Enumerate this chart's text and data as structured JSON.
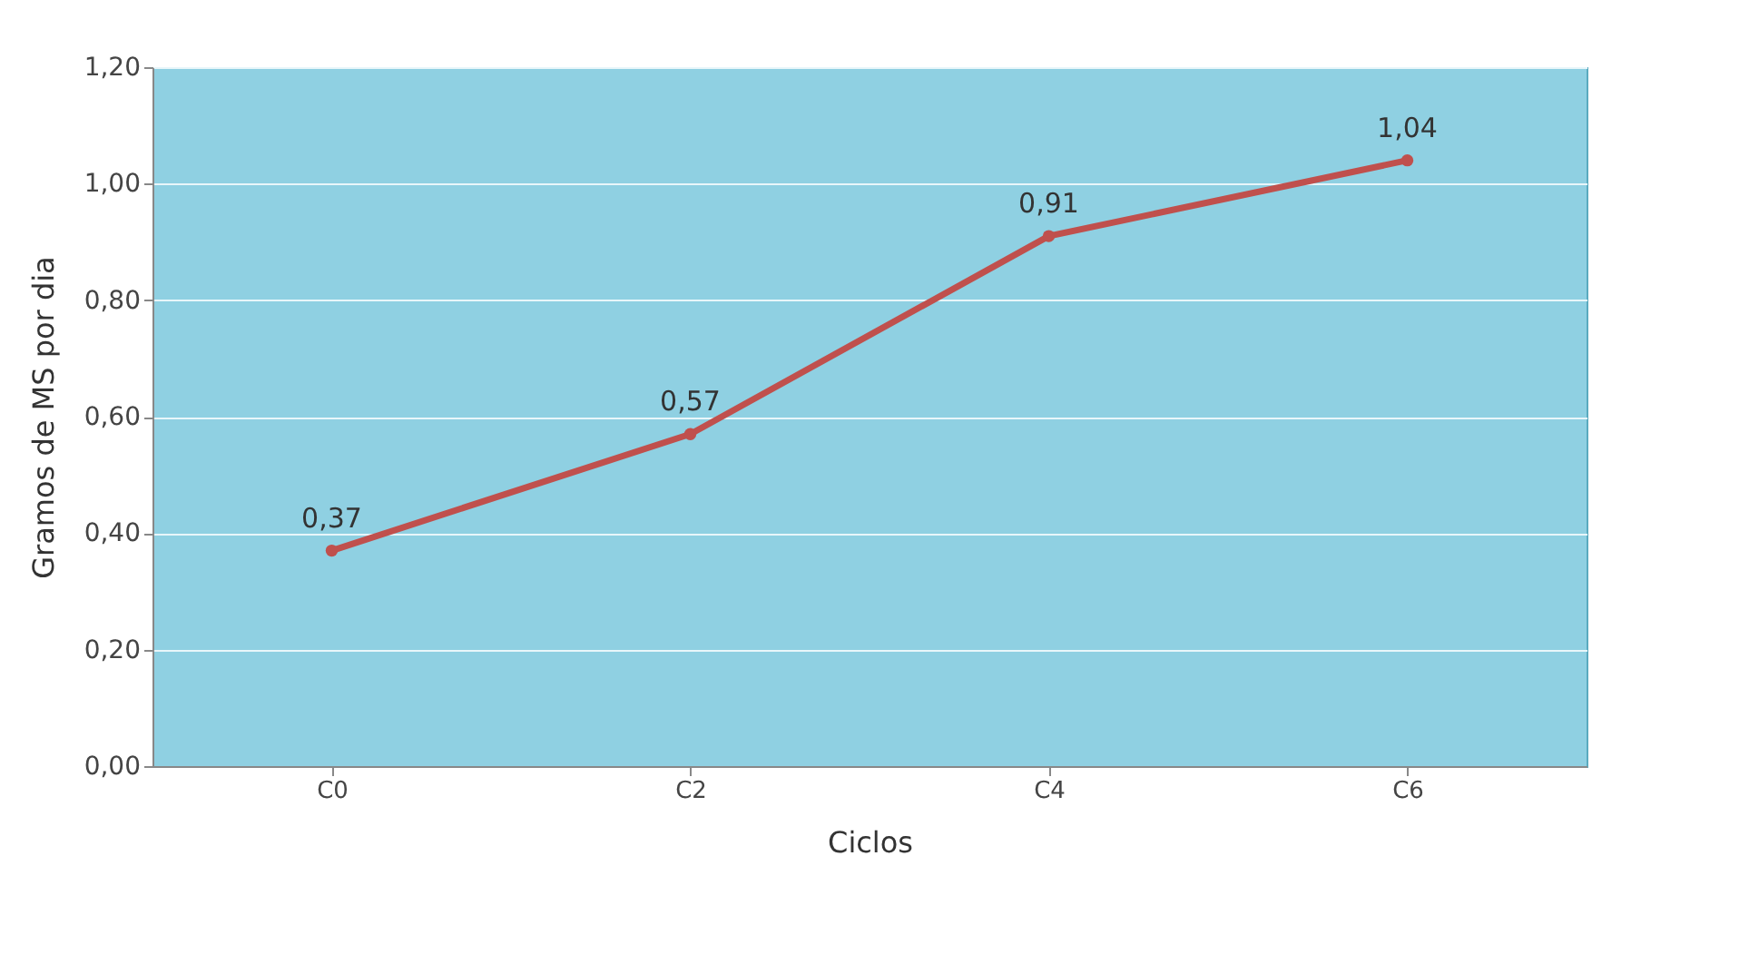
{
  "chart_data": {
    "type": "line",
    "xlabel": "Ciclos",
    "ylabel": "Gramos de MS  por dia",
    "categories": [
      "C0",
      "C2",
      "C4",
      "C6"
    ],
    "series": [
      {
        "color": "#c0504d",
        "values": [
          0.37,
          0.57,
          0.91,
          1.04
        ],
        "value_labels": [
          "0,37",
          "0,57",
          "0,91",
          "1,04"
        ]
      }
    ],
    "ylim": [
      0,
      1.2
    ],
    "yticks": [
      {
        "value": 0,
        "label": "0,00"
      },
      {
        "value": 0.2,
        "label": "0,20"
      },
      {
        "value": 0.4,
        "label": "0,40"
      },
      {
        "value": 0.6,
        "label": "0,60"
      },
      {
        "value": 0.8,
        "label": "0,80"
      },
      {
        "value": 1.0,
        "label": "1,00"
      },
      {
        "value": 1.2,
        "label": "1,20"
      }
    ],
    "grid": "y",
    "marker": "circle",
    "line_style": "solid"
  }
}
